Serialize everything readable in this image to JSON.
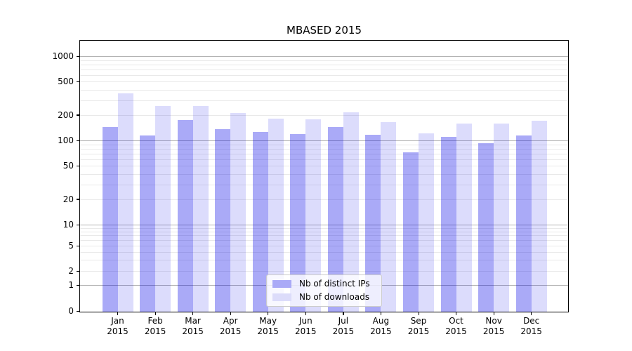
{
  "chart_data": {
    "type": "bar",
    "title": "MBASED 2015",
    "xlabel": "",
    "ylabel": "",
    "yscale": "symlog",
    "ylim": [
      0,
      1500
    ],
    "yticks": [
      0,
      1,
      2,
      5,
      10,
      20,
      50,
      100,
      200,
      500,
      1000
    ],
    "grid": "horizontal major+minor",
    "legend_position": "lower center",
    "categories": [
      {
        "label": "Jan",
        "sub": "2015"
      },
      {
        "label": "Feb",
        "sub": "2015"
      },
      {
        "label": "Mar",
        "sub": "2015"
      },
      {
        "label": "Apr",
        "sub": "2015"
      },
      {
        "label": "May",
        "sub": "2015"
      },
      {
        "label": "Jun",
        "sub": "2015"
      },
      {
        "label": "Jul",
        "sub": "2015"
      },
      {
        "label": "Aug",
        "sub": "2015"
      },
      {
        "label": "Sep",
        "sub": "2015"
      },
      {
        "label": "Oct",
        "sub": "2015"
      },
      {
        "label": "Nov",
        "sub": "2015"
      },
      {
        "label": "Dec",
        "sub": "2015"
      }
    ],
    "series": [
      {
        "name": "Nb of distinct IPs",
        "color_rgba": "rgba(0,0,230,0.333)",
        "swatch_hex": "#aaaaf7",
        "values": [
          145,
          114,
          174,
          135,
          127,
          120,
          144,
          117,
          72,
          110,
          93,
          114
        ]
      },
      {
        "name": "Nb of downloads",
        "color_rgba": "rgba(0,0,230,0.137)",
        "swatch_hex": "#dcdcfa",
        "values": [
          360,
          255,
          255,
          210,
          181,
          178,
          215,
          165,
          121,
          158,
          159,
          170
        ]
      }
    ]
  }
}
